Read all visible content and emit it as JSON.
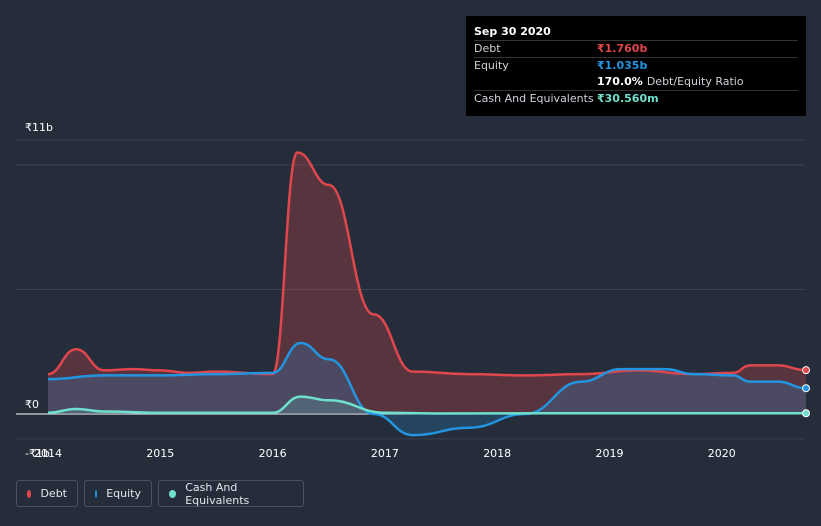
{
  "tooltip": {
    "date": "Sep 30 2020",
    "debt_label": "Debt",
    "debt_value": "₹1.760b",
    "equity_label": "Equity",
    "equity_value": "₹1.035b",
    "ratio_value": "170.0%",
    "ratio_label": "Debt/Equity Ratio",
    "cash_label": "Cash And Equivalents",
    "cash_value": "₹30.560m"
  },
  "legend": {
    "debt": "Debt",
    "equity": "Equity",
    "cash": "Cash And Equivalents"
  },
  "colors": {
    "debt": "#e0474c",
    "equity": "#2394df",
    "cash": "#6fe0cd",
    "background": "#252d3b"
  },
  "chart_data": {
    "type": "area",
    "title": "",
    "xlabel": "",
    "ylabel": "",
    "ylim": [
      -1,
      11
    ],
    "y_ticks": [
      {
        "value": 11,
        "label": "₹11b"
      },
      {
        "value": 0,
        "label": "₹0"
      },
      {
        "value": -1,
        "label": "-₹1b"
      }
    ],
    "x_ticks": [
      {
        "value": 2014,
        "label": "2014"
      },
      {
        "value": 2015,
        "label": "2015"
      },
      {
        "value": 2016,
        "label": "2016"
      },
      {
        "value": 2017,
        "label": "2017"
      },
      {
        "value": 2018,
        "label": "2018"
      },
      {
        "value": 2019,
        "label": "2019"
      },
      {
        "value": 2020,
        "label": "2020"
      }
    ],
    "xlim": [
      2013.75,
      2020.75
    ],
    "series": [
      {
        "name": "Debt",
        "key": "debt",
        "points": [
          [
            2014.0,
            1.6
          ],
          [
            2014.25,
            2.6
          ],
          [
            2014.5,
            1.75
          ],
          [
            2014.75,
            1.8
          ],
          [
            2015.0,
            1.75
          ],
          [
            2015.25,
            1.65
          ],
          [
            2015.5,
            1.7
          ],
          [
            2016.0,
            1.6
          ],
          [
            2016.22,
            10.5
          ],
          [
            2016.5,
            9.2
          ],
          [
            2016.9,
            4.0
          ],
          [
            2017.25,
            1.7
          ],
          [
            2017.75,
            1.6
          ],
          [
            2018.25,
            1.55
          ],
          [
            2018.75,
            1.6
          ],
          [
            2019.25,
            1.75
          ],
          [
            2019.75,
            1.6
          ],
          [
            2020.1,
            1.65
          ],
          [
            2020.25,
            1.95
          ],
          [
            2020.5,
            1.95
          ],
          [
            2020.75,
            1.76
          ]
        ]
      },
      {
        "name": "Equity",
        "key": "equity",
        "points": [
          [
            2014.0,
            1.4
          ],
          [
            2014.5,
            1.55
          ],
          [
            2015.0,
            1.55
          ],
          [
            2015.5,
            1.6
          ],
          [
            2016.0,
            1.65
          ],
          [
            2016.25,
            2.85
          ],
          [
            2016.5,
            2.2
          ],
          [
            2016.9,
            0.0
          ],
          [
            2017.25,
            -0.85
          ],
          [
            2017.75,
            -0.55
          ],
          [
            2018.25,
            0.0
          ],
          [
            2018.75,
            1.3
          ],
          [
            2019.1,
            1.8
          ],
          [
            2019.5,
            1.8
          ],
          [
            2019.75,
            1.6
          ],
          [
            2020.1,
            1.55
          ],
          [
            2020.25,
            1.3
          ],
          [
            2020.5,
            1.3
          ],
          [
            2020.75,
            1.035
          ]
        ]
      },
      {
        "name": "Cash And Equivalents",
        "key": "cash",
        "points": [
          [
            2014.0,
            0.05
          ],
          [
            2014.25,
            0.2
          ],
          [
            2014.5,
            0.1
          ],
          [
            2015.0,
            0.05
          ],
          [
            2015.5,
            0.05
          ],
          [
            2016.0,
            0.05
          ],
          [
            2016.25,
            0.7
          ],
          [
            2016.5,
            0.55
          ],
          [
            2017.0,
            0.05
          ],
          [
            2017.5,
            0.02
          ],
          [
            2018.5,
            0.03
          ],
          [
            2019.5,
            0.03
          ],
          [
            2020.75,
            0.03
          ]
        ]
      }
    ]
  }
}
